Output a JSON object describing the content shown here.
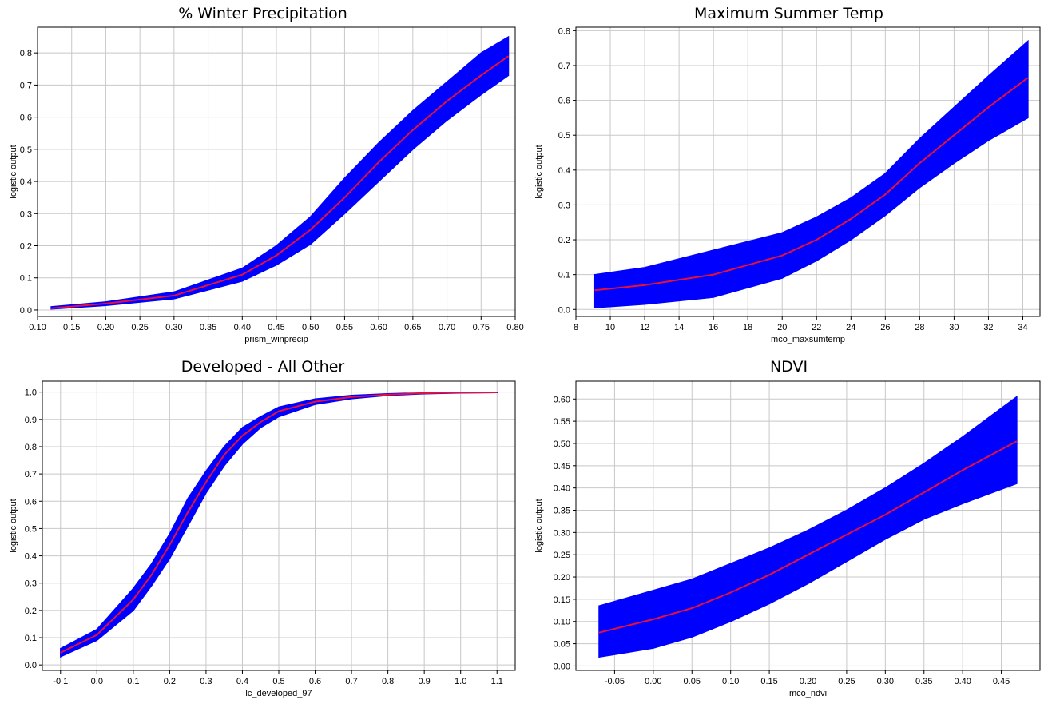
{
  "colors": {
    "band": "#0000ff",
    "line": "#e8103a",
    "grid": "#c8c8c8",
    "axis": "#000000"
  },
  "chart_data": [
    {
      "type": "line",
      "title": "% Winter Precipitation",
      "xlabel": "prism_winprecip",
      "ylabel": "logistic output",
      "xlim": [
        0.1,
        0.8
      ],
      "ylim": [
        -0.02,
        0.88
      ],
      "xticks": [
        "0.10",
        "0.15",
        "0.20",
        "0.25",
        "0.30",
        "0.35",
        "0.40",
        "0.45",
        "0.50",
        "0.55",
        "0.60",
        "0.65",
        "0.70",
        "0.75",
        "0.80"
      ],
      "yticks": [
        "0.0",
        "0.1",
        "0.2",
        "0.3",
        "0.4",
        "0.5",
        "0.6",
        "0.7",
        "0.8"
      ],
      "grid": true,
      "x": [
        0.12,
        0.2,
        0.3,
        0.4,
        0.45,
        0.5,
        0.55,
        0.6,
        0.65,
        0.7,
        0.75,
        0.79
      ],
      "y": [
        0.005,
        0.02,
        0.045,
        0.11,
        0.17,
        0.25,
        0.35,
        0.46,
        0.56,
        0.65,
        0.73,
        0.79
      ],
      "lower": [
        0.003,
        0.014,
        0.035,
        0.09,
        0.14,
        0.205,
        0.3,
        0.4,
        0.5,
        0.59,
        0.67,
        0.73
      ],
      "upper": [
        0.01,
        0.025,
        0.056,
        0.13,
        0.2,
        0.29,
        0.41,
        0.52,
        0.62,
        0.71,
        0.8,
        0.85
      ]
    },
    {
      "type": "line",
      "title": "Maximum Summer Temp",
      "xlabel": "mco_maxsumtemp",
      "ylabel": "logistic output",
      "xlim": [
        8,
        35
      ],
      "ylim": [
        -0.02,
        0.81
      ],
      "xticks": [
        "8",
        "10",
        "12",
        "14",
        "16",
        "18",
        "20",
        "22",
        "24",
        "26",
        "28",
        "30",
        "32",
        "34"
      ],
      "yticks": [
        "0.0",
        "0.1",
        "0.2",
        "0.3",
        "0.4",
        "0.5",
        "0.6",
        "0.7",
        "0.8"
      ],
      "grid": true,
      "x": [
        9.1,
        12,
        16,
        20,
        22,
        24,
        26,
        28,
        30,
        32,
        34.3
      ],
      "y": [
        0.055,
        0.07,
        0.1,
        0.155,
        0.2,
        0.26,
        0.33,
        0.42,
        0.5,
        0.58,
        0.665
      ],
      "lower": [
        0.005,
        0.015,
        0.035,
        0.09,
        0.14,
        0.2,
        0.27,
        0.35,
        0.42,
        0.485,
        0.55
      ],
      "upper": [
        0.1,
        0.12,
        0.17,
        0.22,
        0.265,
        0.32,
        0.39,
        0.49,
        0.58,
        0.67,
        0.77
      ]
    },
    {
      "type": "line",
      "title": "Developed - All Other",
      "xlabel": "lc_developed_97",
      "ylabel": "logistic output",
      "xlim": [
        -0.15,
        1.15
      ],
      "ylim": [
        -0.02,
        1.04
      ],
      "xticks": [
        "-0.1",
        "0.0",
        "0.1",
        "0.2",
        "0.3",
        "0.4",
        "0.5",
        "0.6",
        "0.7",
        "0.8",
        "0.9",
        "1.0",
        "1.1"
      ],
      "yticks": [
        "0.0",
        "0.1",
        "0.2",
        "0.3",
        "0.4",
        "0.5",
        "0.6",
        "0.7",
        "0.8",
        "0.9",
        "1.0"
      ],
      "grid": true,
      "x": [
        -0.1,
        0.0,
        0.1,
        0.15,
        0.2,
        0.25,
        0.3,
        0.35,
        0.4,
        0.45,
        0.5,
        0.6,
        0.7,
        0.8,
        0.9,
        1.0,
        1.1
      ],
      "y": [
        0.045,
        0.11,
        0.24,
        0.33,
        0.44,
        0.56,
        0.67,
        0.77,
        0.84,
        0.89,
        0.93,
        0.965,
        0.982,
        0.991,
        0.996,
        0.998,
        0.999
      ],
      "lower": [
        0.03,
        0.09,
        0.2,
        0.29,
        0.39,
        0.51,
        0.63,
        0.73,
        0.81,
        0.87,
        0.91,
        0.955,
        0.976,
        0.988,
        0.994,
        0.997,
        0.998
      ],
      "upper": [
        0.06,
        0.13,
        0.28,
        0.37,
        0.48,
        0.61,
        0.71,
        0.8,
        0.87,
        0.91,
        0.945,
        0.975,
        0.988,
        0.994,
        0.997,
        0.999,
        1.0
      ]
    },
    {
      "type": "line",
      "title": "NDVI",
      "xlabel": "mco_ndvi",
      "ylabel": "logistic output",
      "xlim": [
        -0.1,
        0.5
      ],
      "ylim": [
        -0.01,
        0.64
      ],
      "xticks": [
        "-0.05",
        "0.00",
        "0.05",
        "0.10",
        "0.15",
        "0.20",
        "0.25",
        "0.30",
        "0.35",
        "0.40",
        "0.45"
      ],
      "yticks": [
        "0.00",
        "0.05",
        "0.10",
        "0.15",
        "0.20",
        "0.25",
        "0.30",
        "0.35",
        "0.40",
        "0.45",
        "0.50",
        "0.55",
        "0.60"
      ],
      "grid": true,
      "x": [
        -0.07,
        0.0,
        0.05,
        0.1,
        0.15,
        0.2,
        0.25,
        0.3,
        0.35,
        0.4,
        0.47
      ],
      "y": [
        0.075,
        0.105,
        0.13,
        0.165,
        0.205,
        0.25,
        0.295,
        0.34,
        0.39,
        0.44,
        0.505
      ],
      "lower": [
        0.02,
        0.04,
        0.065,
        0.1,
        0.14,
        0.185,
        0.235,
        0.285,
        0.33,
        0.365,
        0.41
      ],
      "upper": [
        0.135,
        0.17,
        0.195,
        0.23,
        0.265,
        0.305,
        0.35,
        0.4,
        0.455,
        0.515,
        0.605
      ]
    }
  ]
}
